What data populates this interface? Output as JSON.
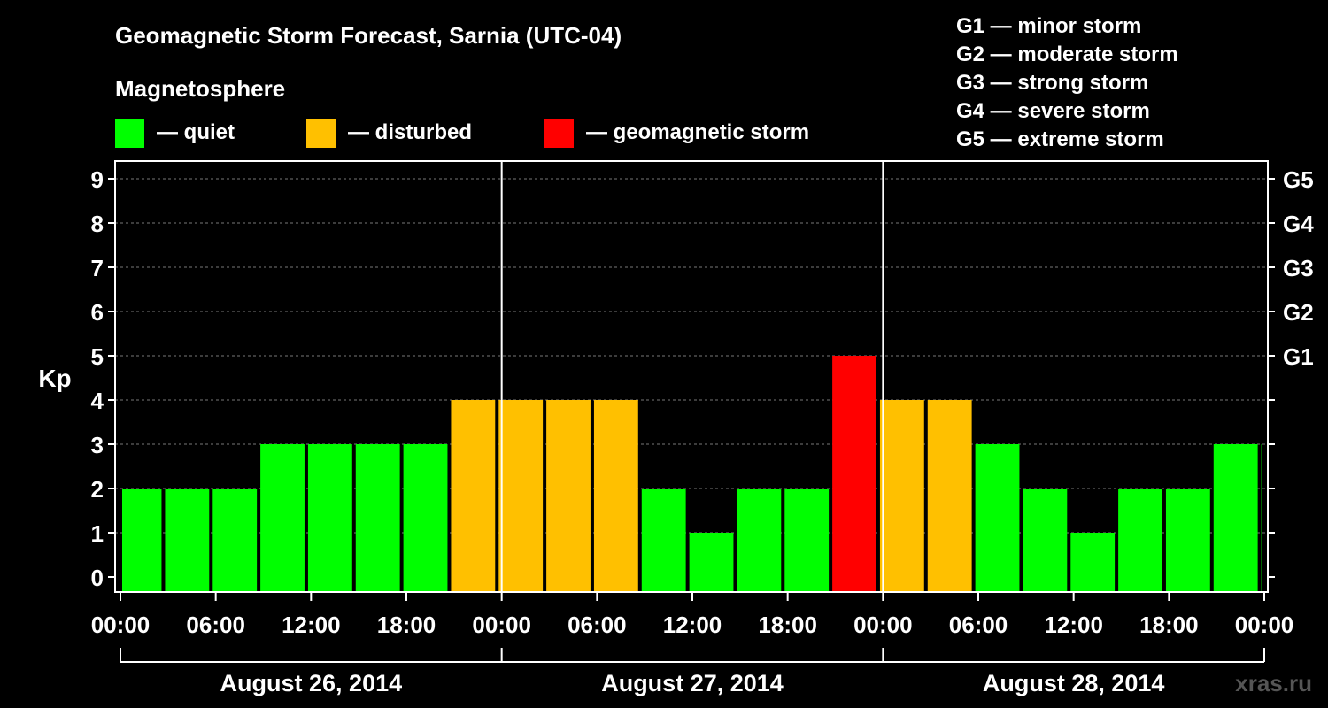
{
  "chart_data": {
    "type": "bar",
    "title": "Geomagnetic Storm Forecast, Sarnia (UTC-04)",
    "ylabel": "Kp",
    "ylim": [
      0,
      9
    ],
    "yticks": [
      "0",
      "1",
      "2",
      "3",
      "4",
      "5",
      "6",
      "7",
      "8",
      "9"
    ],
    "storm_levels": [
      {
        "kp": 5,
        "label": "G1"
      },
      {
        "kp": 6,
        "label": "G2"
      },
      {
        "kp": 7,
        "label": "G3"
      },
      {
        "kp": 8,
        "label": "G4"
      },
      {
        "kp": 9,
        "label": "G5"
      }
    ],
    "legend": {
      "title": "Magnetosphere",
      "items": [
        {
          "label": "— quiet",
          "color": "#00ff00"
        },
        {
          "label": "— disturbed",
          "color": "#ffc000"
        },
        {
          "label": "— geomagnetic storm",
          "color": "#ff0000"
        }
      ]
    },
    "storm_scale": [
      "G1 — minor storm",
      "G2 — moderate storm",
      "G3 — strong storm",
      "G4 — severe storm",
      "G5 — extreme storm"
    ],
    "hours_total": 72,
    "x_tick_labels": [
      "00:00",
      "06:00",
      "12:00",
      "18:00",
      "00:00",
      "06:00",
      "12:00",
      "18:00",
      "00:00",
      "06:00",
      "12:00",
      "18:00",
      "00:00"
    ],
    "days": [
      "August 26, 2014",
      "August 27, 2014",
      "August 28, 2014"
    ],
    "series": [
      {
        "name": "Kp",
        "values": [
          2,
          2,
          2,
          3,
          3,
          3,
          3,
          4,
          4,
          4,
          4,
          2,
          1,
          2,
          2,
          5,
          4,
          4,
          3,
          2,
          1,
          2,
          2,
          3,
          3
        ],
        "colors": [
          "#00ff00",
          "#00ff00",
          "#00ff00",
          "#00ff00",
          "#00ff00",
          "#00ff00",
          "#00ff00",
          "#ffc000",
          "#ffc000",
          "#ffc000",
          "#ffc000",
          "#00ff00",
          "#00ff00",
          "#00ff00",
          "#00ff00",
          "#ff0000",
          "#ffc000",
          "#ffc000",
          "#00ff00",
          "#00ff00",
          "#00ff00",
          "#00ff00",
          "#00ff00",
          "#00ff00",
          "#00ff00"
        ]
      }
    ],
    "bar_hours": [
      [
        0,
        2.7
      ],
      [
        2.7,
        5.7
      ],
      [
        5.7,
        8.7
      ],
      [
        8.7,
        11.7
      ],
      [
        11.7,
        14.7
      ],
      [
        14.7,
        17.7
      ],
      [
        17.7,
        20.7
      ],
      [
        20.7,
        23.7
      ],
      [
        23.7,
        26.7
      ],
      [
        26.7,
        29.7
      ],
      [
        29.7,
        32.7
      ],
      [
        32.7,
        35.7
      ],
      [
        35.7,
        38.7
      ],
      [
        38.7,
        41.7
      ],
      [
        41.7,
        44.7
      ],
      [
        44.7,
        47.7
      ],
      [
        47.7,
        50.7
      ],
      [
        50.7,
        53.7
      ],
      [
        53.7,
        56.7
      ],
      [
        56.7,
        59.7
      ],
      [
        59.7,
        62.7
      ],
      [
        62.7,
        65.7
      ],
      [
        65.7,
        68.7
      ],
      [
        68.7,
        71.7
      ],
      [
        71.7,
        72
      ]
    ]
  },
  "watermark": "xras.ru"
}
